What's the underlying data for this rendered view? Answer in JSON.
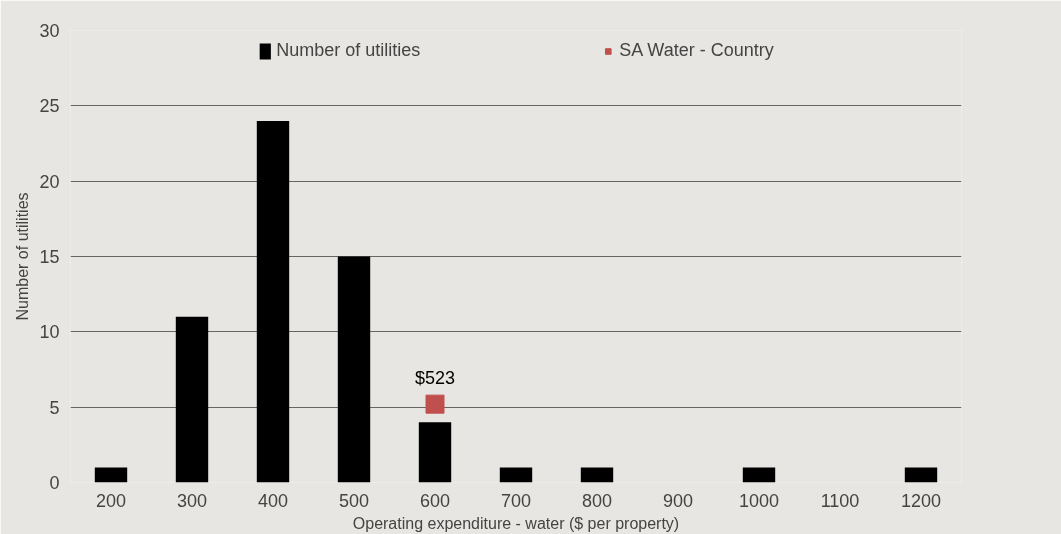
{
  "chart_data": {
    "type": "bar",
    "xlabel": "Operating expenditure - water ($ per property)",
    "ylabel": "Number of utilities",
    "categories": [
      "200",
      "300",
      "400",
      "500",
      "600",
      "700",
      "800",
      "900",
      "1000",
      "1100",
      "1200"
    ],
    "series": [
      {
        "name": "Number of utilities",
        "color": "#000000",
        "values": [
          1,
          11,
          24,
          15,
          4,
          1,
          1,
          0,
          1,
          0,
          1
        ]
      },
      {
        "type": "scatter",
        "name": "SA Water - Country",
        "color": "#c0504d",
        "x": [
          "600"
        ],
        "values": [
          5.2
        ],
        "marker": "square"
      }
    ],
    "annotations": [
      {
        "text": "$523",
        "x": "600",
        "y": 5.2
      }
    ],
    "ylim": [
      0,
      30
    ],
    "yticks": [
      0,
      5,
      10,
      15,
      20,
      25,
      30
    ],
    "grid": "y",
    "legend": "top"
  }
}
